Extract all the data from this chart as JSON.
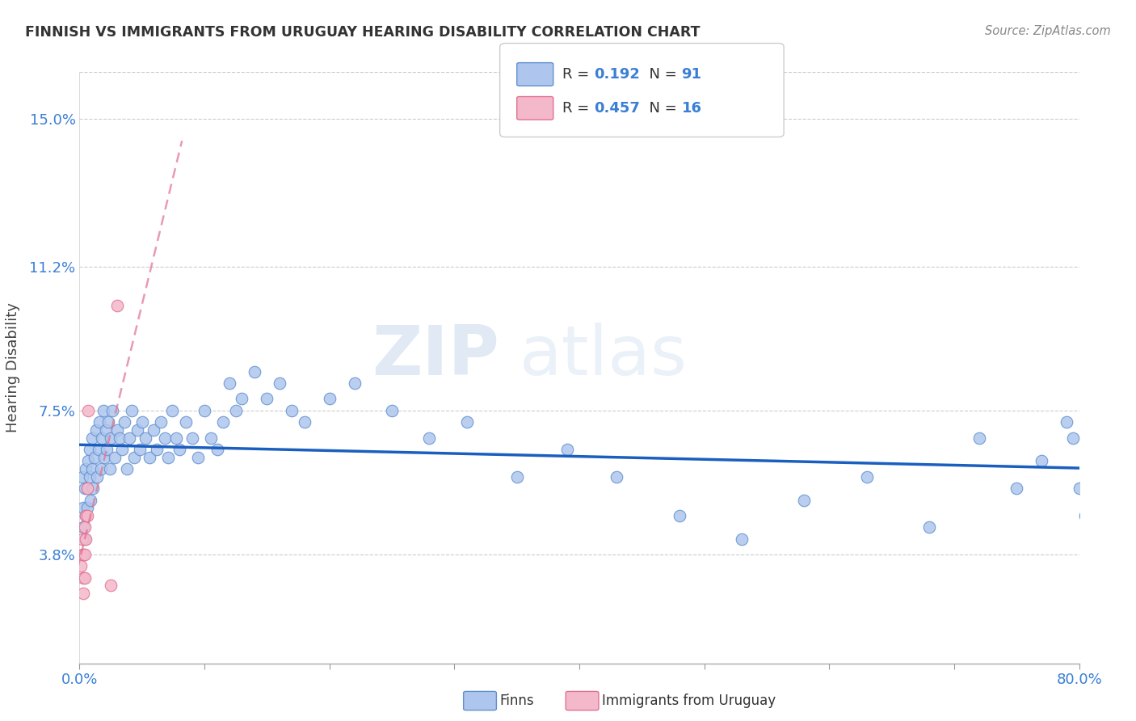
{
  "title": "FINNISH VS IMMIGRANTS FROM URUGUAY HEARING DISABILITY CORRELATION CHART",
  "source": "Source: ZipAtlas.com",
  "ylabel": "Hearing Disability",
  "yticks": [
    0.038,
    0.075,
    0.112,
    0.15
  ],
  "ytick_labels": [
    "3.8%",
    "7.5%",
    "11.2%",
    "15.0%"
  ],
  "xmin": 0.0,
  "xmax": 0.8,
  "ymin": 0.01,
  "ymax": 0.162,
  "legend1_r": "0.192",
  "legend1_n": "91",
  "legend2_r": "0.457",
  "legend2_n": "16",
  "finns_color": "#aec6ed",
  "finns_edge": "#6090d0",
  "uruguay_color": "#f4b8cb",
  "uruguay_edge": "#e07090",
  "trendline_finns_color": "#1a5fbf",
  "trendline_uruguay_color": "#e07090",
  "watermark_zip": "ZIP",
  "watermark_atlas": "atlas",
  "finns_x": [
    0.002,
    0.003,
    0.003,
    0.004,
    0.004,
    0.005,
    0.005,
    0.006,
    0.006,
    0.007,
    0.008,
    0.008,
    0.009,
    0.01,
    0.01,
    0.011,
    0.012,
    0.013,
    0.014,
    0.015,
    0.016,
    0.017,
    0.018,
    0.019,
    0.02,
    0.021,
    0.022,
    0.023,
    0.024,
    0.025,
    0.026,
    0.028,
    0.03,
    0.032,
    0.034,
    0.036,
    0.038,
    0.04,
    0.042,
    0.044,
    0.046,
    0.048,
    0.05,
    0.053,
    0.056,
    0.059,
    0.062,
    0.065,
    0.068,
    0.071,
    0.074,
    0.077,
    0.08,
    0.085,
    0.09,
    0.095,
    0.1,
    0.105,
    0.11,
    0.115,
    0.12,
    0.125,
    0.13,
    0.14,
    0.15,
    0.16,
    0.17,
    0.18,
    0.2,
    0.22,
    0.25,
    0.28,
    0.31,
    0.35,
    0.39,
    0.43,
    0.48,
    0.53,
    0.58,
    0.63,
    0.68,
    0.72,
    0.75,
    0.77,
    0.79,
    0.795,
    0.8,
    0.805,
    0.81,
    0.82,
    0.83
  ],
  "finns_y": [
    0.058,
    0.045,
    0.05,
    0.055,
    0.042,
    0.06,
    0.048,
    0.055,
    0.05,
    0.062,
    0.058,
    0.065,
    0.052,
    0.06,
    0.068,
    0.055,
    0.063,
    0.07,
    0.058,
    0.065,
    0.072,
    0.06,
    0.068,
    0.075,
    0.063,
    0.07,
    0.065,
    0.072,
    0.06,
    0.068,
    0.075,
    0.063,
    0.07,
    0.068,
    0.065,
    0.072,
    0.06,
    0.068,
    0.075,
    0.063,
    0.07,
    0.065,
    0.072,
    0.068,
    0.063,
    0.07,
    0.065,
    0.072,
    0.068,
    0.063,
    0.075,
    0.068,
    0.065,
    0.072,
    0.068,
    0.063,
    0.075,
    0.068,
    0.065,
    0.072,
    0.082,
    0.075,
    0.078,
    0.085,
    0.078,
    0.082,
    0.075,
    0.072,
    0.078,
    0.082,
    0.075,
    0.068,
    0.072,
    0.058,
    0.065,
    0.058,
    0.048,
    0.042,
    0.052,
    0.058,
    0.045,
    0.068,
    0.055,
    0.062,
    0.072,
    0.068,
    0.055,
    0.048,
    0.062,
    0.058,
    0.065
  ],
  "uruguay_x": [
    0.001,
    0.002,
    0.002,
    0.003,
    0.003,
    0.003,
    0.004,
    0.004,
    0.004,
    0.005,
    0.005,
    0.006,
    0.006,
    0.007,
    0.025,
    0.03
  ],
  "uruguay_y": [
    0.035,
    0.038,
    0.042,
    0.038,
    0.032,
    0.028,
    0.045,
    0.038,
    0.032,
    0.048,
    0.042,
    0.055,
    0.048,
    0.075,
    0.03,
    0.102
  ],
  "trendline_uruguay_x_start": 0.0,
  "trendline_uruguay_x_end": 0.08
}
